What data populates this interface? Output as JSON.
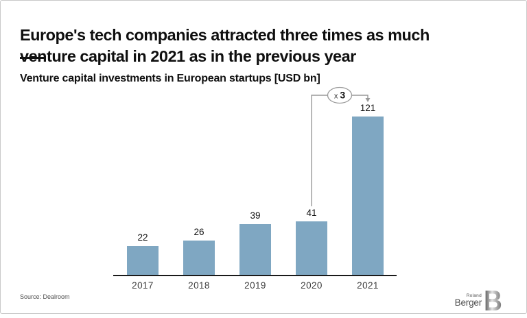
{
  "page": {
    "title_line1": "Europe's tech companies attracted three times as much",
    "title_line2": "venture capital in 2021 as in the previous year",
    "subtitle": "Venture capital investments in European startups [USD bn]",
    "source": "Source: Dealroom"
  },
  "logo": {
    "top": "Roland",
    "bottom": "Berger",
    "mark": "B"
  },
  "colors": {
    "bar": "#7fa7c2",
    "axis": "#1a1a1a",
    "annotation_line": "#999999",
    "title_text": "#0f0f0f",
    "value_label": "#111111",
    "year_label": "#3d3d3d",
    "page_border": "#c8c8c8"
  },
  "chart_data": {
    "type": "bar",
    "categories": [
      "2017",
      "2018",
      "2019",
      "2020",
      "2021"
    ],
    "values": [
      22,
      26,
      39,
      41,
      121
    ],
    "title": "Venture capital investments in European startups [USD bn]",
    "xlabel": "",
    "ylabel": "",
    "ylim": [
      0,
      130
    ],
    "grid": false,
    "legend": false,
    "annotation": {
      "label": "x 3",
      "from_category": "2020",
      "to_category": "2021"
    }
  }
}
